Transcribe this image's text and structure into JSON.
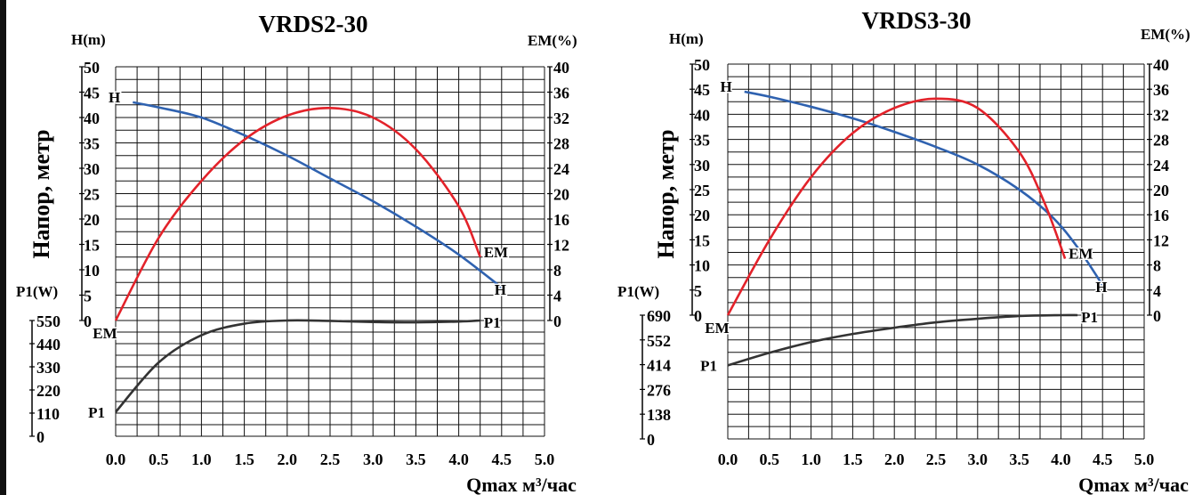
{
  "chart_data": [
    {
      "type": "line",
      "title": "VRDS2-30",
      "ylabel_vertical": "Напор, метр",
      "xlabel": "Qmax м³/час",
      "x_ticks": [
        "0.0",
        "0.5",
        "1.0",
        "1.5",
        "2.0",
        "2.5",
        "3.0",
        "3.5",
        "4.0",
        "4.5",
        "5.0"
      ],
      "head_axis": {
        "title": "H(m)",
        "range": [
          0,
          50
        ],
        "ticks": [
          "0",
          "5",
          "10",
          "15",
          "20",
          "25",
          "30",
          "35",
          "40",
          "45",
          "50"
        ]
      },
      "eff_axis": {
        "title": "EM(%)",
        "range": [
          0,
          40
        ],
        "ticks": [
          "0",
          "4",
          "8",
          "12",
          "16",
          "20",
          "24",
          "28",
          "32",
          "36",
          "40"
        ]
      },
      "power_axis": {
        "title": "P1(W)",
        "range": [
          0,
          550
        ],
        "ticks": [
          "0",
          "110",
          "220",
          "330",
          "440",
          "550"
        ]
      },
      "series": [
        {
          "name": "H",
          "axis": "head",
          "color": "#2f62b0",
          "label_left": "H",
          "label_right": "H",
          "x": [
            0.2,
            0.5,
            1.0,
            1.5,
            2.0,
            2.5,
            3.0,
            3.5,
            4.0,
            4.5
          ],
          "y": [
            43,
            42,
            40,
            36.5,
            32.5,
            28,
            23.5,
            18.5,
            13,
            6.5
          ]
        },
        {
          "name": "EM",
          "axis": "eff",
          "color": "#e3222a",
          "label_left": "EM",
          "label_right": "EM",
          "x": [
            0.0,
            0.5,
            1.0,
            1.5,
            2.0,
            2.5,
            3.0,
            3.5,
            4.0,
            4.25
          ],
          "y": [
            0,
            13,
            22,
            28.5,
            32.3,
            33.5,
            32,
            27,
            18,
            10
          ]
        },
        {
          "name": "P1",
          "axis": "power",
          "color": "#333333",
          "label_left": "P1",
          "label_right": "P1",
          "x": [
            0.0,
            0.5,
            1.0,
            1.5,
            2.0,
            2.5,
            3.0,
            3.5,
            4.0,
            4.25
          ],
          "y": [
            115,
            350,
            480,
            535,
            550,
            548,
            543,
            541,
            545,
            550
          ]
        }
      ]
    },
    {
      "type": "line",
      "title": "VRDS3-30",
      "ylabel_vertical": "Напор, метр",
      "xlabel": "Qmax м³/час",
      "x_ticks": [
        "0.0",
        "0.5",
        "1.0",
        "1.5",
        "2.0",
        "2.5",
        "3.0",
        "3.5",
        "4.0",
        "4.5",
        "5.0"
      ],
      "head_axis": {
        "title": "H(m)",
        "range": [
          0,
          50
        ],
        "ticks": [
          "0",
          "5",
          "10",
          "15",
          "20",
          "25",
          "30",
          "35",
          "40",
          "45",
          "50"
        ]
      },
      "eff_axis": {
        "title": "EM(%)",
        "range": [
          0,
          40
        ],
        "ticks": [
          "0",
          "4",
          "8",
          "12",
          "16",
          "20",
          "24",
          "28",
          "32",
          "36",
          "40"
        ]
      },
      "power_axis": {
        "title": "P1(W)",
        "range": [
          0,
          690
        ],
        "ticks": [
          "0",
          "138",
          "276",
          "414",
          "552",
          "690"
        ]
      },
      "series": [
        {
          "name": "H",
          "axis": "head",
          "color": "#2f62b0",
          "label_left": "H",
          "label_right": "H",
          "x": [
            0.2,
            0.5,
            1.0,
            1.5,
            2.0,
            2.5,
            3.0,
            3.5,
            3.9,
            4.2,
            4.5
          ],
          "y": [
            44.5,
            43.5,
            41.5,
            39.2,
            36.5,
            33.5,
            30,
            25,
            19.5,
            13.5,
            6
          ]
        },
        {
          "name": "EM",
          "axis": "eff",
          "color": "#e3222a",
          "label_left": "EM",
          "label_right": "EM",
          "x": [
            0.0,
            0.5,
            1.0,
            1.5,
            2.0,
            2.5,
            3.0,
            3.5,
            3.8,
            4.05
          ],
          "y": [
            0,
            12,
            22,
            29,
            33,
            34.5,
            33,
            26,
            18,
            9
          ]
        },
        {
          "name": "P1",
          "axis": "power",
          "color": "#333333",
          "label_left": "P1",
          "label_right": "P1",
          "x": [
            0.0,
            0.5,
            1.0,
            1.5,
            2.0,
            2.5,
            3.0,
            3.5,
            4.0,
            4.2
          ],
          "y": [
            410,
            480,
            540,
            585,
            620,
            650,
            670,
            685,
            690,
            690
          ]
        }
      ]
    }
  ]
}
